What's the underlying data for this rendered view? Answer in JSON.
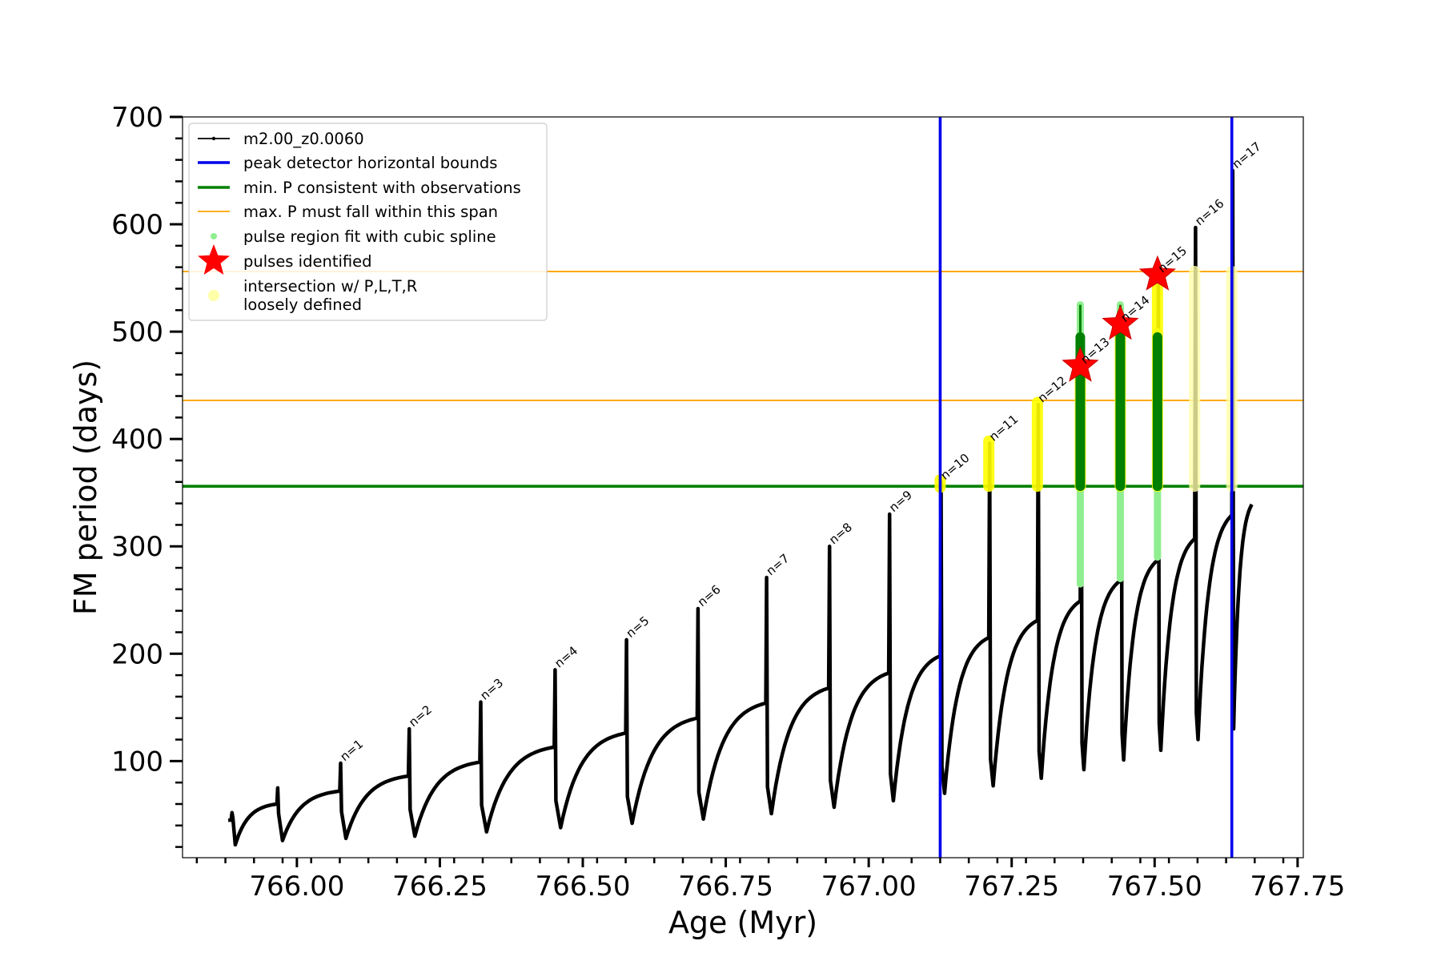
{
  "chart_data": {
    "type": "line",
    "xlabel": "Age (Myr)",
    "ylabel": "FM period (days)",
    "xlim": [
      765.8,
      767.76
    ],
    "ylim": [
      10,
      700
    ],
    "x_ticks": [
      766.0,
      766.25,
      766.5,
      766.75,
      767.0,
      767.25,
      767.5,
      767.75
    ],
    "x_tick_labels": [
      "766.00",
      "766.25",
      "766.50",
      "766.75",
      "767.00",
      "767.25",
      "767.50",
      "767.75"
    ],
    "y_ticks": [
      100,
      200,
      300,
      400,
      500,
      600,
      700
    ],
    "y_tick_labels": [
      "100",
      "200",
      "300",
      "400",
      "500",
      "600",
      "700"
    ],
    "legend_position": "top-left",
    "colors": {
      "track": "#000000",
      "bounds": "#0000ee",
      "min_p": "#008000",
      "max_p": "#ffa500",
      "spline": "#90ee90",
      "pulse_star": "#ff0000",
      "intersection": "#ffff00",
      "loose": "#ffffaa"
    },
    "legend": [
      {
        "label": "m2.00_z0.0060",
        "kind": "line-marker",
        "color": "#000000"
      },
      {
        "label": "peak detector horizontal bounds",
        "kind": "thick-line",
        "color": "#0000ee"
      },
      {
        "label": "min. P consistent with observations",
        "kind": "thick-line",
        "color": "#008000"
      },
      {
        "label": "max. P must fall within this span",
        "kind": "thin-line",
        "color": "#ffa500"
      },
      {
        "label": "pulse region fit with cubic spline",
        "kind": "dot",
        "color": "#90ee90"
      },
      {
        "label": "pulses identified",
        "kind": "star",
        "color": "#ff0000"
      },
      {
        "label": "intersection w/ P,L,T,R",
        "kind": "circle",
        "color": "#ffffaa"
      },
      {
        "label": "loosely defined",
        "kind": "none",
        "color": "#ffffaa"
      }
    ],
    "vertical_bounds": [
      767.125,
      767.635
    ],
    "min_p": 356,
    "max_p_span": [
      436,
      556
    ],
    "start": {
      "x": 765.88,
      "y": 45
    },
    "pulses": [
      {
        "n": 0,
        "label": "",
        "x": 765.885,
        "pre": 45,
        "peak": 52,
        "min": 22
      },
      {
        "n": 0,
        "label": "",
        "x": 765.965,
        "pre": 60,
        "peak": 75,
        "min": 26
      },
      {
        "n": 1,
        "label": "n=1",
        "x": 766.075,
        "pre": 72,
        "peak": 98,
        "min": 28
      },
      {
        "n": 2,
        "label": "n=2",
        "x": 766.195,
        "pre": 86,
        "peak": 130,
        "min": 30
      },
      {
        "n": 3,
        "label": "n=3",
        "x": 766.32,
        "pre": 99,
        "peak": 155,
        "min": 34
      },
      {
        "n": 4,
        "label": "n=4",
        "x": 766.45,
        "pre": 113,
        "peak": 185,
        "min": 38
      },
      {
        "n": 5,
        "label": "n=5",
        "x": 766.575,
        "pre": 126,
        "peak": 213,
        "min": 42
      },
      {
        "n": 6,
        "label": "n=6",
        "x": 766.7,
        "pre": 140,
        "peak": 242,
        "min": 46
      },
      {
        "n": 7,
        "label": "n=7",
        "x": 766.82,
        "pre": 154,
        "peak": 271,
        "min": 51
      },
      {
        "n": 8,
        "label": "n=8",
        "x": 766.93,
        "pre": 168,
        "peak": 300,
        "min": 57
      },
      {
        "n": 9,
        "label": "n=9",
        "x": 767.035,
        "pre": 182,
        "peak": 330,
        "min": 63
      },
      {
        "n": 10,
        "label": "n=10",
        "x": 767.125,
        "pre": 198,
        "peak": 360,
        "min": 70
      },
      {
        "n": 11,
        "label": "n=11",
        "x": 767.21,
        "pre": 215,
        "peak": 396,
        "min": 77
      },
      {
        "n": 12,
        "label": "n=12",
        "x": 767.295,
        "pre": 231,
        "peak": 432,
        "min": 84
      },
      {
        "n": 13,
        "label": "n=13",
        "x": 767.37,
        "pre": 249,
        "peak": 468,
        "min": 92
      },
      {
        "n": 14,
        "label": "n=14",
        "x": 767.44,
        "pre": 268,
        "peak": 507,
        "min": 101
      },
      {
        "n": 15,
        "label": "n=15",
        "x": 767.505,
        "pre": 287,
        "peak": 553,
        "min": 110
      },
      {
        "n": 16,
        "label": "n=16",
        "x": 767.57,
        "pre": 307,
        "peak": 597,
        "min": 120
      },
      {
        "n": 17,
        "label": "n=17",
        "x": 767.635,
        "pre": 329,
        "peak": 650,
        "min": 130
      }
    ],
    "end": {
      "x": 767.67,
      "y": 339
    },
    "spline_pulses": [
      {
        "x": 767.37,
        "y_min": 265,
        "y_max": 525
      },
      {
        "x": 767.44,
        "y_min": 270,
        "y_max": 525
      },
      {
        "x": 767.505,
        "y_min": 290,
        "y_max": 500
      }
    ],
    "intersection_pulses": [
      {
        "x": 767.125,
        "y_min": 355,
        "y_max": 362,
        "loose": false
      },
      {
        "x": 767.21,
        "y_min": 356,
        "y_max": 398,
        "loose": false
      },
      {
        "x": 767.295,
        "y_min": 356,
        "y_max": 434,
        "loose": false
      },
      {
        "x": 767.37,
        "y_min": 356,
        "y_max": 470,
        "loose": false
      },
      {
        "x": 767.44,
        "y_min": 356,
        "y_max": 509,
        "loose": false
      },
      {
        "x": 767.505,
        "y_min": 356,
        "y_max": 555,
        "loose": false
      },
      {
        "x": 767.57,
        "y_min": 356,
        "y_max": 556,
        "loose": true
      },
      {
        "x": 767.635,
        "y_min": 356,
        "y_max": 556,
        "loose": true
      }
    ],
    "pulses_identified": [
      {
        "x": 767.37,
        "y": 468
      },
      {
        "x": 767.44,
        "y": 507
      },
      {
        "x": 767.505,
        "y": 553
      }
    ]
  }
}
